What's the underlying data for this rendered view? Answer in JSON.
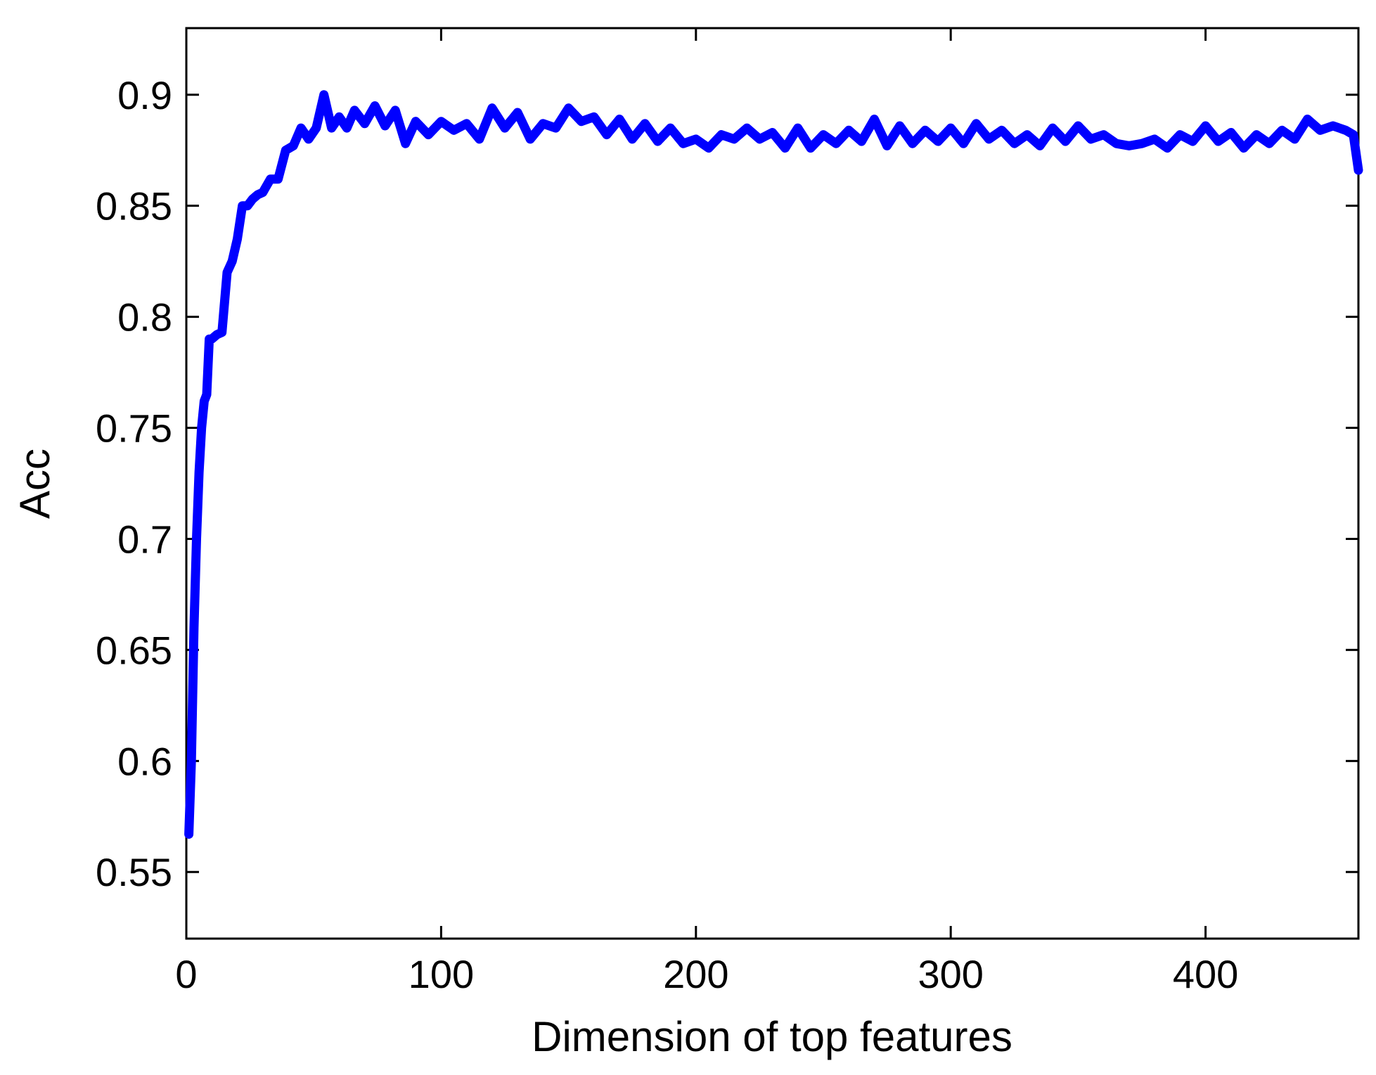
{
  "chart_data": {
    "type": "line",
    "title": "",
    "xlabel": "Dimension of top features",
    "ylabel": "Acc",
    "xlim": [
      0,
      460
    ],
    "ylim": [
      0.52,
      0.93
    ],
    "xticks": [
      0,
      100,
      200,
      300,
      400
    ],
    "xtick_labels": [
      "0",
      "100",
      "200",
      "300",
      "400"
    ],
    "yticks": [
      0.55,
      0.6,
      0.65,
      0.7,
      0.75,
      0.8,
      0.85,
      0.9
    ],
    "ytick_labels": [
      "0.55",
      "0.6",
      "0.65",
      "0.7",
      "0.75",
      "0.8",
      "0.85",
      "0.9"
    ],
    "grid": false,
    "series_color": "#0000ff",
    "series": [
      {
        "x": [
          1,
          2,
          3,
          4,
          5,
          6,
          7,
          8,
          9,
          10,
          12,
          14,
          16,
          18,
          20,
          22,
          24,
          26,
          28,
          30,
          33,
          36,
          39,
          42,
          45,
          48,
          51,
          54,
          57,
          60,
          63,
          66,
          70,
          74,
          78,
          82,
          86,
          90,
          95,
          100,
          105,
          110,
          115,
          120,
          125,
          130,
          135,
          140,
          145,
          150,
          155,
          160,
          165,
          170,
          175,
          180,
          185,
          190,
          195,
          200,
          205,
          210,
          215,
          220,
          225,
          230,
          235,
          240,
          245,
          250,
          255,
          260,
          265,
          270,
          275,
          280,
          285,
          290,
          295,
          300,
          305,
          310,
          315,
          320,
          325,
          330,
          335,
          340,
          345,
          350,
          355,
          360,
          365,
          370,
          375,
          380,
          385,
          390,
          395,
          400,
          405,
          410,
          415,
          420,
          425,
          430,
          435,
          440,
          445,
          450,
          455,
          458,
          460
        ],
        "y": [
          0.567,
          0.6,
          0.66,
          0.7,
          0.73,
          0.75,
          0.762,
          0.765,
          0.79,
          0.79,
          0.792,
          0.793,
          0.82,
          0.825,
          0.835,
          0.85,
          0.85,
          0.853,
          0.855,
          0.856,
          0.862,
          0.862,
          0.875,
          0.877,
          0.885,
          0.88,
          0.885,
          0.9,
          0.885,
          0.89,
          0.885,
          0.893,
          0.887,
          0.895,
          0.886,
          0.893,
          0.878,
          0.888,
          0.882,
          0.888,
          0.884,
          0.887,
          0.88,
          0.894,
          0.885,
          0.892,
          0.88,
          0.887,
          0.885,
          0.894,
          0.888,
          0.89,
          0.882,
          0.889,
          0.88,
          0.887,
          0.879,
          0.885,
          0.878,
          0.88,
          0.876,
          0.882,
          0.88,
          0.885,
          0.88,
          0.883,
          0.876,
          0.885,
          0.876,
          0.882,
          0.878,
          0.884,
          0.879,
          0.889,
          0.877,
          0.886,
          0.878,
          0.884,
          0.879,
          0.885,
          0.878,
          0.887,
          0.88,
          0.884,
          0.878,
          0.882,
          0.877,
          0.885,
          0.879,
          0.886,
          0.88,
          0.882,
          0.878,
          0.877,
          0.878,
          0.88,
          0.876,
          0.882,
          0.879,
          0.886,
          0.879,
          0.883,
          0.876,
          0.882,
          0.878,
          0.884,
          0.88,
          0.889,
          0.884,
          0.886,
          0.884,
          0.882,
          0.866
        ]
      }
    ]
  }
}
